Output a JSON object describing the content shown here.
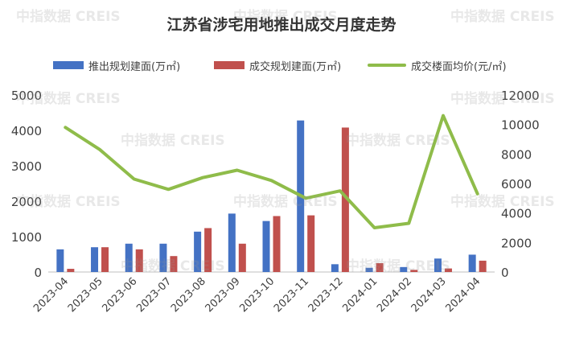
{
  "watermark": "中指数据 CREIS",
  "chart_data": {
    "type": "bar",
    "title": "江苏省涉宅用地推出成交月度走势",
    "categories": [
      "2023-04",
      "2023-05",
      "2023-06",
      "2023-07",
      "2023-08",
      "2023-09",
      "2023-10",
      "2023-11",
      "2023-12",
      "2024-01",
      "2024-02",
      "2024-03",
      "2024-04"
    ],
    "left_axis": {
      "ylim": [
        0,
        5000
      ],
      "ticks": [
        "0",
        "1000",
        "2000",
        "3000",
        "4000",
        "5000"
      ]
    },
    "right_axis": {
      "ylim": [
        0,
        12000
      ],
      "ticks": [
        "0",
        "2000",
        "4000",
        "6000",
        "8000",
        "10000",
        "12000"
      ]
    },
    "series": [
      {
        "name": "推出规划建面(万㎡)",
        "type": "bar",
        "axis": "left",
        "color": "#4472c4",
        "values": [
          640,
          700,
          800,
          800,
          1140,
          1650,
          1440,
          4280,
          220,
          120,
          140,
          380,
          490
        ]
      },
      {
        "name": "成交规划建面(万㎡)",
        "type": "bar",
        "axis": "left",
        "color": "#c0504d",
        "values": [
          90,
          700,
          640,
          450,
          1240,
          800,
          1580,
          1600,
          4080,
          250,
          60,
          100,
          320
        ]
      },
      {
        "name": "成交楼面均价(元/㎡)",
        "type": "line",
        "axis": "right",
        "color": "#8fbc4a",
        "values": [
          9800,
          8300,
          6300,
          5600,
          6400,
          6900,
          6200,
          5000,
          5500,
          3000,
          3300,
          10600,
          5300
        ]
      }
    ],
    "grid": false,
    "legend": "top"
  }
}
